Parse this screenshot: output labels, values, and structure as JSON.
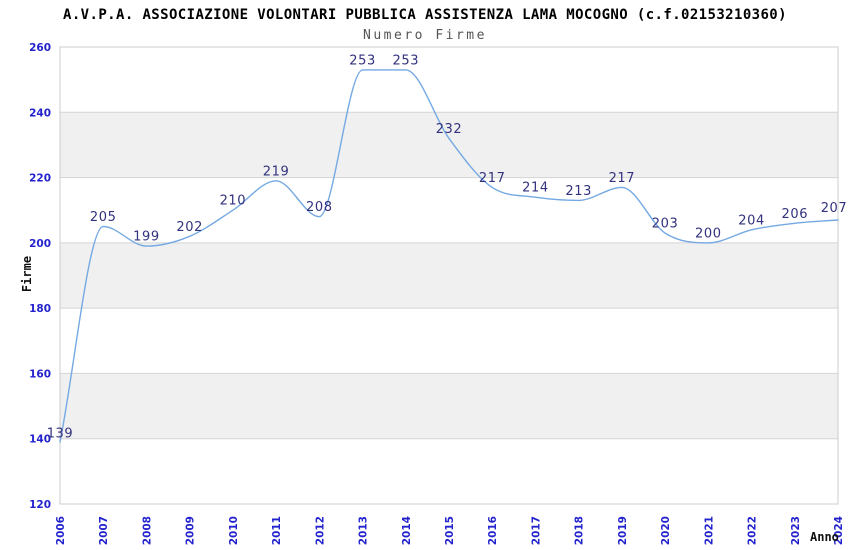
{
  "chart_data": {
    "type": "line",
    "title": "A.V.P.A. ASSOCIAZIONE VOLONTARI PUBBLICA ASSISTENZA LAMA MOCOGNO (c.f.02153210360)",
    "subtitle": "Numero Firme",
    "xlabel": "Anno",
    "ylabel": "Firme",
    "categories": [
      "2006",
      "2007",
      "2008",
      "2009",
      "2010",
      "2011",
      "2012",
      "2013",
      "2014",
      "2015",
      "2016",
      "2017",
      "2018",
      "2019",
      "2020",
      "2021",
      "2022",
      "2023",
      "2024"
    ],
    "series": [
      {
        "name": "Numero Firme",
        "values": [
          139,
          205,
          199,
          202,
          210,
          219,
          208,
          253,
          253,
          232,
          217,
          214,
          213,
          217,
          203,
          200,
          204,
          206,
          207
        ]
      }
    ],
    "data_labels_visible": true,
    "ylim": [
      120,
      260
    ],
    "ytick_step": 20,
    "yticks": [
      120,
      140,
      160,
      180,
      200,
      220,
      240,
      260
    ],
    "grid": true,
    "alternating_bands": true,
    "legend_position": "none",
    "colors": {
      "line": "#74a9e2",
      "tick_label": "#2323ce",
      "data_label": "#32327e",
      "title": "#000000",
      "subtitle": "#555555",
      "axis_title": "#111111",
      "grid_line": "#d4d4d4",
      "band_gray": "#f0f0f0",
      "plot_border": "#cccccc",
      "background": "#ffffff"
    }
  }
}
